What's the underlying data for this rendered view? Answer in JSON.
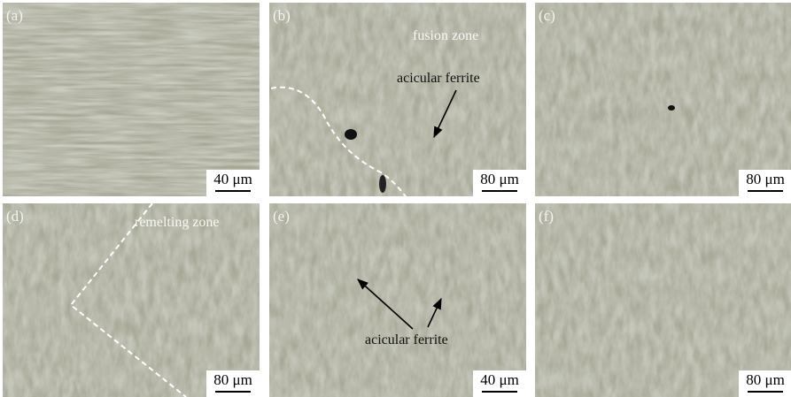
{
  "panels": [
    {
      "label": "(a)",
      "scale": "40 μm"
    },
    {
      "label": "(b)",
      "scale": "80 μm"
    },
    {
      "label": "(c)",
      "scale": "80 μm"
    },
    {
      "label": "(d)",
      "scale": "80 μm"
    },
    {
      "label": "(e)",
      "scale": "40 μm"
    },
    {
      "label": "(f)",
      "scale": "80 μm"
    }
  ],
  "annotations": {
    "b_zone": "fusion zone",
    "b_phase": "acicular ferrite",
    "d_zone": "remelting zone",
    "e_phase": "acicular ferrite"
  }
}
